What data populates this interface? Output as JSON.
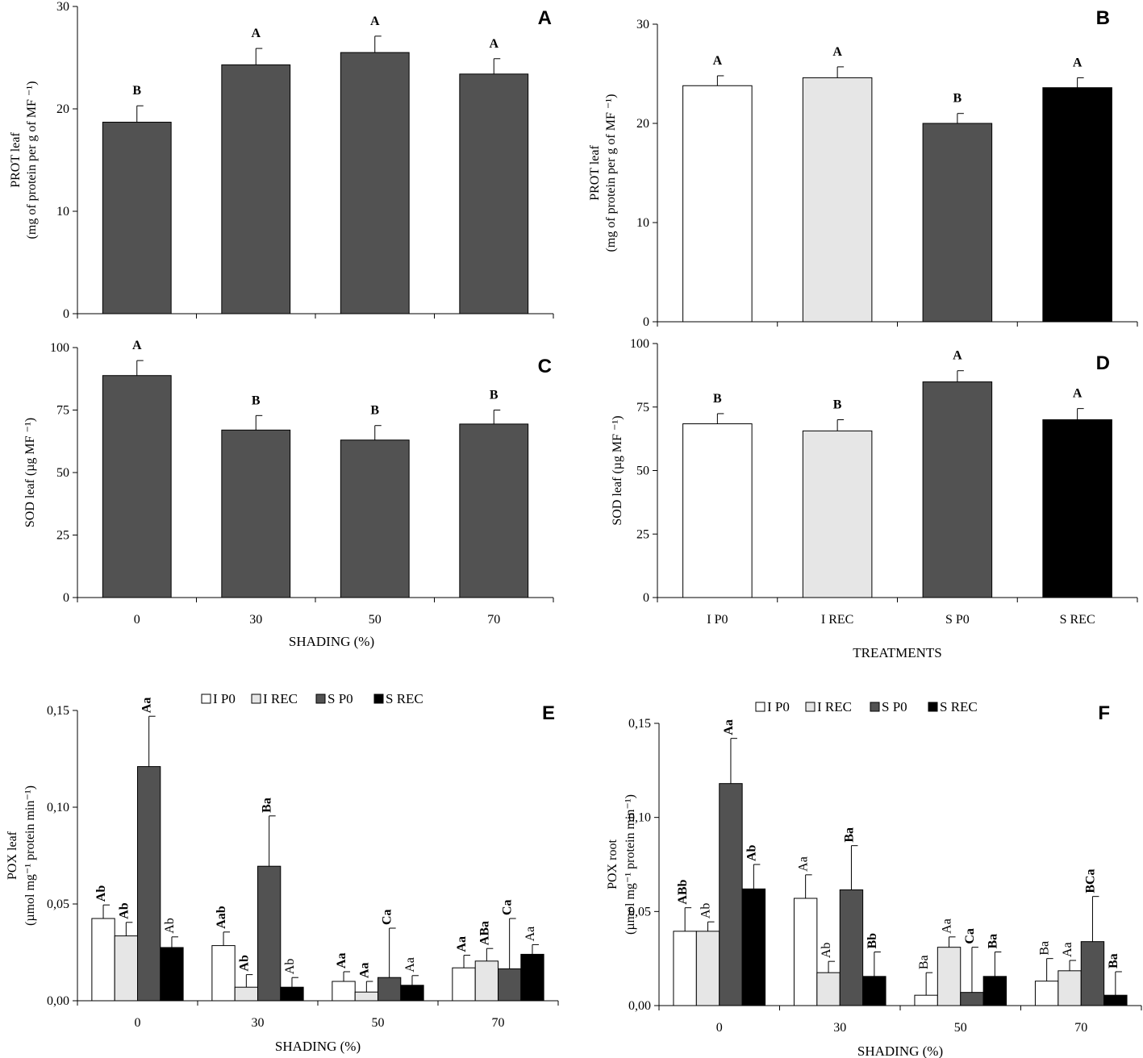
{
  "colors": {
    "I P0": "#ffffff",
    "I REC": "#e6e6e6",
    "S P0": "#525252",
    "S REC": "#000000"
  },
  "chart_data": [
    {
      "id": "A",
      "type": "bar",
      "panel_label": "A",
      "categories": [
        "0",
        "30",
        "50",
        "70"
      ],
      "values": [
        18.7,
        24.3,
        25.5,
        23.4
      ],
      "errors": [
        1.6,
        1.6,
        1.6,
        1.5
      ],
      "letters": [
        "B",
        "A",
        "A",
        "A"
      ],
      "ylim": [
        0,
        30
      ],
      "yticks": [
        "0",
        "10",
        "20",
        "30"
      ],
      "ylabel": [
        "PROT leaf",
        "(mg of protein per g of MF ⁻¹)"
      ],
      "xlabel": "",
      "show_xticklabels": false
    },
    {
      "id": "B",
      "type": "bar",
      "panel_label": "B",
      "categories": [
        "I P0",
        "I REC",
        "S P0",
        "S REC"
      ],
      "values": [
        23.8,
        24.6,
        20.0,
        23.6
      ],
      "errors": [
        1.0,
        1.1,
        1.0,
        1.0
      ],
      "letters": [
        "A",
        "A",
        "B",
        "A"
      ],
      "ylim": [
        0,
        30
      ],
      "yticks": [
        "0",
        "10",
        "20",
        "30"
      ],
      "ylabel": [
        "PROT leaf",
        "(mg of protein per g of  MF ⁻¹)"
      ],
      "xlabel": "",
      "show_xticklabels": false
    },
    {
      "id": "C",
      "type": "bar",
      "panel_label": "C",
      "categories": [
        "0",
        "30",
        "50",
        "70"
      ],
      "values": [
        88.8,
        67.0,
        63.0,
        69.4
      ],
      "errors": [
        6.0,
        5.8,
        5.8,
        5.6
      ],
      "letters": [
        "A",
        "B",
        "B",
        "B"
      ],
      "ylim": [
        0,
        100
      ],
      "yticks": [
        "0",
        "25",
        "50",
        "75",
        "100"
      ],
      "ylabel": [
        "SOD leaf (µg MF ⁻¹)"
      ],
      "xlabel": "SHADING (%)",
      "show_xticklabels": true
    },
    {
      "id": "D",
      "type": "bar",
      "panel_label": "D",
      "categories": [
        "I P0",
        "I REC",
        "S P0",
        "S REC"
      ],
      "values": [
        68.4,
        65.6,
        84.9,
        70.0
      ],
      "errors": [
        4.0,
        4.4,
        4.4,
        4.4
      ],
      "letters": [
        "B",
        "B",
        "A",
        "A"
      ],
      "ylim": [
        0,
        100
      ],
      "yticks": [
        "0",
        "25",
        "50",
        "75",
        "100"
      ],
      "ylabel": [
        "SOD leaf (µg MF ⁻¹)"
      ],
      "xlabel": "TREATMENTS",
      "show_xticklabels": true
    },
    {
      "id": "E",
      "type": "bar",
      "panel_label": "E",
      "categories": [
        "0",
        "30",
        "50",
        "70"
      ],
      "series_names": [
        "I P0",
        "I REC",
        "S P0",
        "S REC"
      ],
      "values": [
        [
          0.0425,
          0.0335,
          0.121,
          0.0275
        ],
        [
          0.0285,
          0.007,
          0.0695,
          0.007
        ],
        [
          0.01,
          0.0045,
          0.012,
          0.008
        ],
        [
          0.017,
          0.0205,
          0.0165,
          0.024
        ]
      ],
      "errors": [
        [
          0.007,
          0.007,
          0.026,
          0.0055
        ],
        [
          0.007,
          0.0065,
          0.026,
          0.005
        ],
        [
          0.005,
          0.0055,
          0.0255,
          0.005
        ],
        [
          0.0065,
          0.0065,
          0.026,
          0.005
        ]
      ],
      "letters": [
        [
          "Ab",
          "Ab",
          "Aa",
          "Ab"
        ],
        [
          "Aab",
          "Ab",
          "Ba",
          "Ab"
        ],
        [
          "Aa",
          "Aa",
          "Ca",
          "Aa"
        ],
        [
          "Aa",
          "ABa",
          "Ca",
          "Aa"
        ]
      ],
      "letter_bold": [
        [
          true,
          true,
          true,
          false
        ],
        [
          true,
          true,
          true,
          false
        ],
        [
          true,
          true,
          true,
          false
        ],
        [
          true,
          true,
          true,
          false
        ]
      ],
      "ylim": [
        0,
        0.15
      ],
      "yticks": [
        "0,00",
        "0,05",
        "0,10",
        "0,15"
      ],
      "ylabel": [
        "POX leaf",
        "(µmol mg⁻¹ protein min⁻¹)"
      ],
      "xlabel": "SHADING (%)",
      "show_xticklabels": true,
      "legend": [
        "I P0",
        "I REC",
        "S P0",
        "S REC"
      ]
    },
    {
      "id": "F",
      "type": "bar",
      "panel_label": "F",
      "categories": [
        "0",
        "30",
        "50",
        "70"
      ],
      "series_names": [
        "I P0",
        "I REC",
        "S P0",
        "S REC"
      ],
      "values": [
        [
          0.0395,
          0.0395,
          0.118,
          0.062
        ],
        [
          0.057,
          0.0175,
          0.0615,
          0.0155
        ],
        [
          0.0055,
          0.031,
          0.007,
          0.0155
        ],
        [
          0.013,
          0.0185,
          0.034,
          0.0055
        ]
      ],
      "errors": [
        [
          0.0125,
          0.005,
          0.024,
          0.013
        ],
        [
          0.0125,
          0.006,
          0.0235,
          0.013
        ],
        [
          0.012,
          0.0055,
          0.024,
          0.013
        ],
        [
          0.012,
          0.0055,
          0.024,
          0.0125
        ]
      ],
      "letters": [
        [
          "ABb",
          "Ab",
          "Aa",
          "Ab"
        ],
        [
          "Aa",
          "Ab",
          "Ba",
          "Bb"
        ],
        [
          "Ba",
          "Aa",
          "Ca",
          "Ba"
        ],
        [
          "Ba",
          "Aa",
          "BCa",
          "Ba"
        ]
      ],
      "letter_bold": [
        [
          true,
          false,
          true,
          true
        ],
        [
          false,
          false,
          true,
          true
        ],
        [
          false,
          false,
          true,
          true
        ],
        [
          false,
          false,
          true,
          true
        ]
      ],
      "ylim": [
        0,
        0.15
      ],
      "yticks": [
        "0,00",
        "0,05",
        "0,10",
        "0,15"
      ],
      "ylabel": [
        "POX root",
        "(µmol mg⁻¹ protein min⁻¹)"
      ],
      "xlabel": "SHADING (%)",
      "show_xticklabels": true,
      "legend": [
        "I P0",
        "I REC",
        "S P0",
        "S REC"
      ]
    }
  ]
}
